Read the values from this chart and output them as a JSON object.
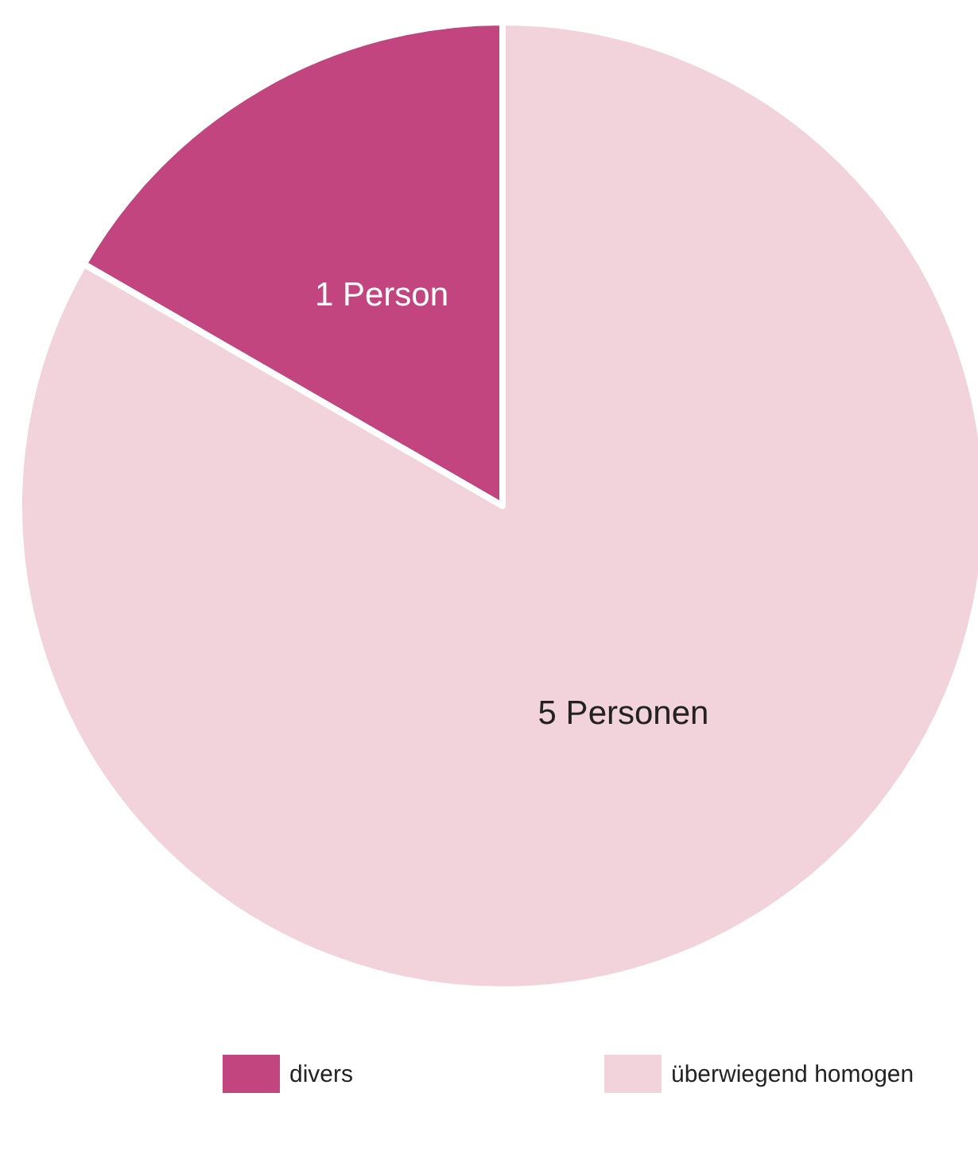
{
  "chart_data": {
    "type": "pie",
    "categories": [
      "divers",
      "überwiegend homogen"
    ],
    "values": [
      1,
      5
    ],
    "colors": [
      "#c2457f",
      "#f2d3dc"
    ],
    "value_labels": [
      "1 Person",
      "5 Personen"
    ],
    "legend": "bottom"
  }
}
